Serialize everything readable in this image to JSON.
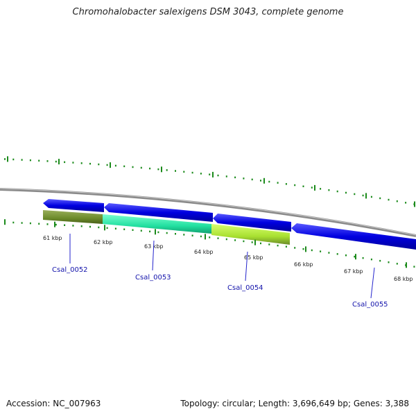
{
  "title": "Chromohalobacter salexigens DSM 3043, complete genome",
  "accession": "Accession: NC_007963",
  "summary": "Topology: circular; Length: 3,696,649 bp; Genes: 3,388",
  "colors": {
    "backbone": "#8a8a8a",
    "cds_forward": "#0000e0",
    "tick": "#1a8a1a",
    "gene_label": "#1111aa"
  },
  "scale_ticks": [
    "61 kbp",
    "62 kbp",
    "63 kbp",
    "64 kbp",
    "65 kbp",
    "66 kbp",
    "67 kbp",
    "68 kbp"
  ],
  "genes": [
    {
      "name": "Csal_0052",
      "color": "#6b8a2a"
    },
    {
      "name": "Csal_0053",
      "color": "#22e0a0"
    },
    {
      "name": "Csal_0054",
      "color": "#a8e030"
    },
    {
      "name": "Csal_0055",
      "color": "#0000e0"
    }
  ]
}
